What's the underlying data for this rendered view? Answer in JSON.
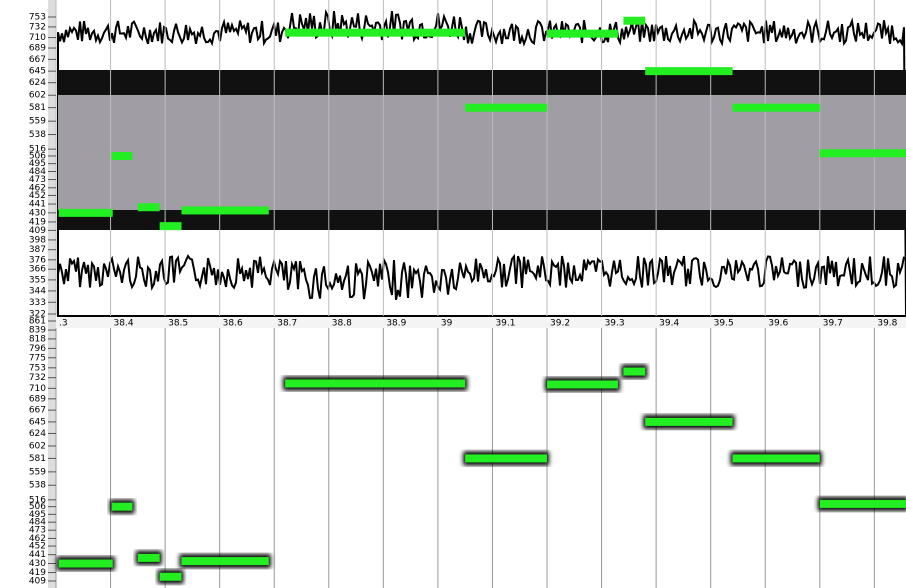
{
  "top_panel": {
    "yscale": "log",
    "ylim": [
      322,
      753
    ],
    "yticks": [
      753,
      732,
      710,
      689,
      667,
      645,
      624,
      602,
      581,
      559,
      538,
      516,
      506,
      495,
      484,
      473,
      462,
      452,
      441,
      430,
      419,
      409,
      398,
      387,
      376,
      366,
      355,
      344,
      333,
      322
    ]
  },
  "bottom_panel": {
    "yscale": "log",
    "ylim": [
      409,
      861
    ],
    "yticks": [
      861,
      839,
      818,
      796,
      775,
      753,
      732,
      710,
      689,
      667,
      645,
      624,
      602,
      581,
      559,
      538,
      516,
      506,
      495,
      484,
      473,
      462,
      452,
      441,
      430,
      419,
      409
    ]
  },
  "time_axis": {
    "xlim": [
      38.3,
      39.858
    ],
    "xticks": [
      {
        "value": 38.3,
        "label": ".3"
      },
      38.4,
      38.5,
      38.6,
      38.7,
      38.8,
      38.9,
      39,
      39.1,
      39.2,
      39.3,
      39.4,
      39.5,
      39.6,
      39.7,
      39.8
    ]
  },
  "note_color": "#22ee22",
  "notes": [
    {
      "start": 38.305,
      "end": 38.404,
      "pitch": 430
    },
    {
      "start": 38.402,
      "end": 38.44,
      "pitch": 506
    },
    {
      "start": 38.45,
      "end": 38.49,
      "pitch": 437
    },
    {
      "start": 38.49,
      "end": 38.53,
      "pitch": 414
    },
    {
      "start": 38.53,
      "end": 38.69,
      "pitch": 433
    },
    {
      "start": 38.72,
      "end": 39.05,
      "pitch": 720
    },
    {
      "start": 39.05,
      "end": 39.2,
      "pitch": 581
    },
    {
      "start": 39.2,
      "end": 39.33,
      "pitch": 718
    },
    {
      "start": 39.34,
      "end": 39.38,
      "pitch": 745
    },
    {
      "start": 39.38,
      "end": 39.54,
      "pitch": 645
    },
    {
      "start": 39.54,
      "end": 39.7,
      "pitch": 581
    },
    {
      "start": 39.7,
      "end": 39.858,
      "pitch": 510
    }
  ]
}
